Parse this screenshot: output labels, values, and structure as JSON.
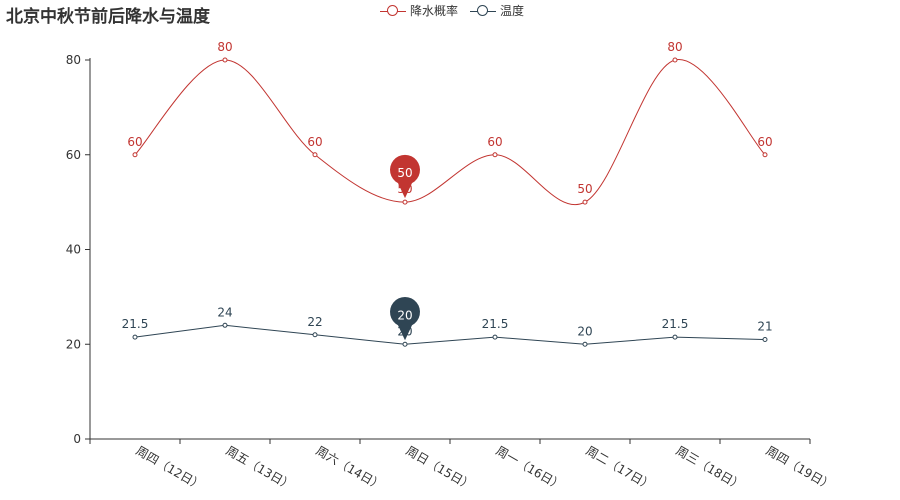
{
  "chart_data": {
    "type": "line",
    "title": "北京中秋节前后降水与温度",
    "categories": [
      "周四（12日）",
      "周五（13日）",
      "周六（14日）",
      "周日（15日）",
      "周一（16日）",
      "周二（17日）",
      "周三（18日）",
      "周四（19日）"
    ],
    "ylim": [
      0,
      80
    ],
    "yticks": [
      0,
      20,
      40,
      60,
      80
    ],
    "legend_position": "top-center",
    "grid": false,
    "series": [
      {
        "name": "降水概率",
        "color": "#c23531",
        "smooth": true,
        "values": [
          60,
          80,
          60,
          50,
          60,
          50,
          80,
          60
        ],
        "labels": [
          "60",
          "80",
          "60",
          "50",
          "60",
          "50",
          "80",
          "60"
        ],
        "marker": {
          "index": 3,
          "label": "50"
        }
      },
      {
        "name": "温度",
        "color": "#2f4554",
        "smooth": false,
        "values": [
          21.5,
          24,
          22,
          20,
          21.5,
          20,
          21.5,
          21
        ],
        "labels": [
          "21.5",
          "24",
          "22",
          "20",
          "21.5",
          "20",
          "21.5",
          "21"
        ],
        "marker": {
          "index": 3,
          "label": "20"
        }
      }
    ]
  }
}
